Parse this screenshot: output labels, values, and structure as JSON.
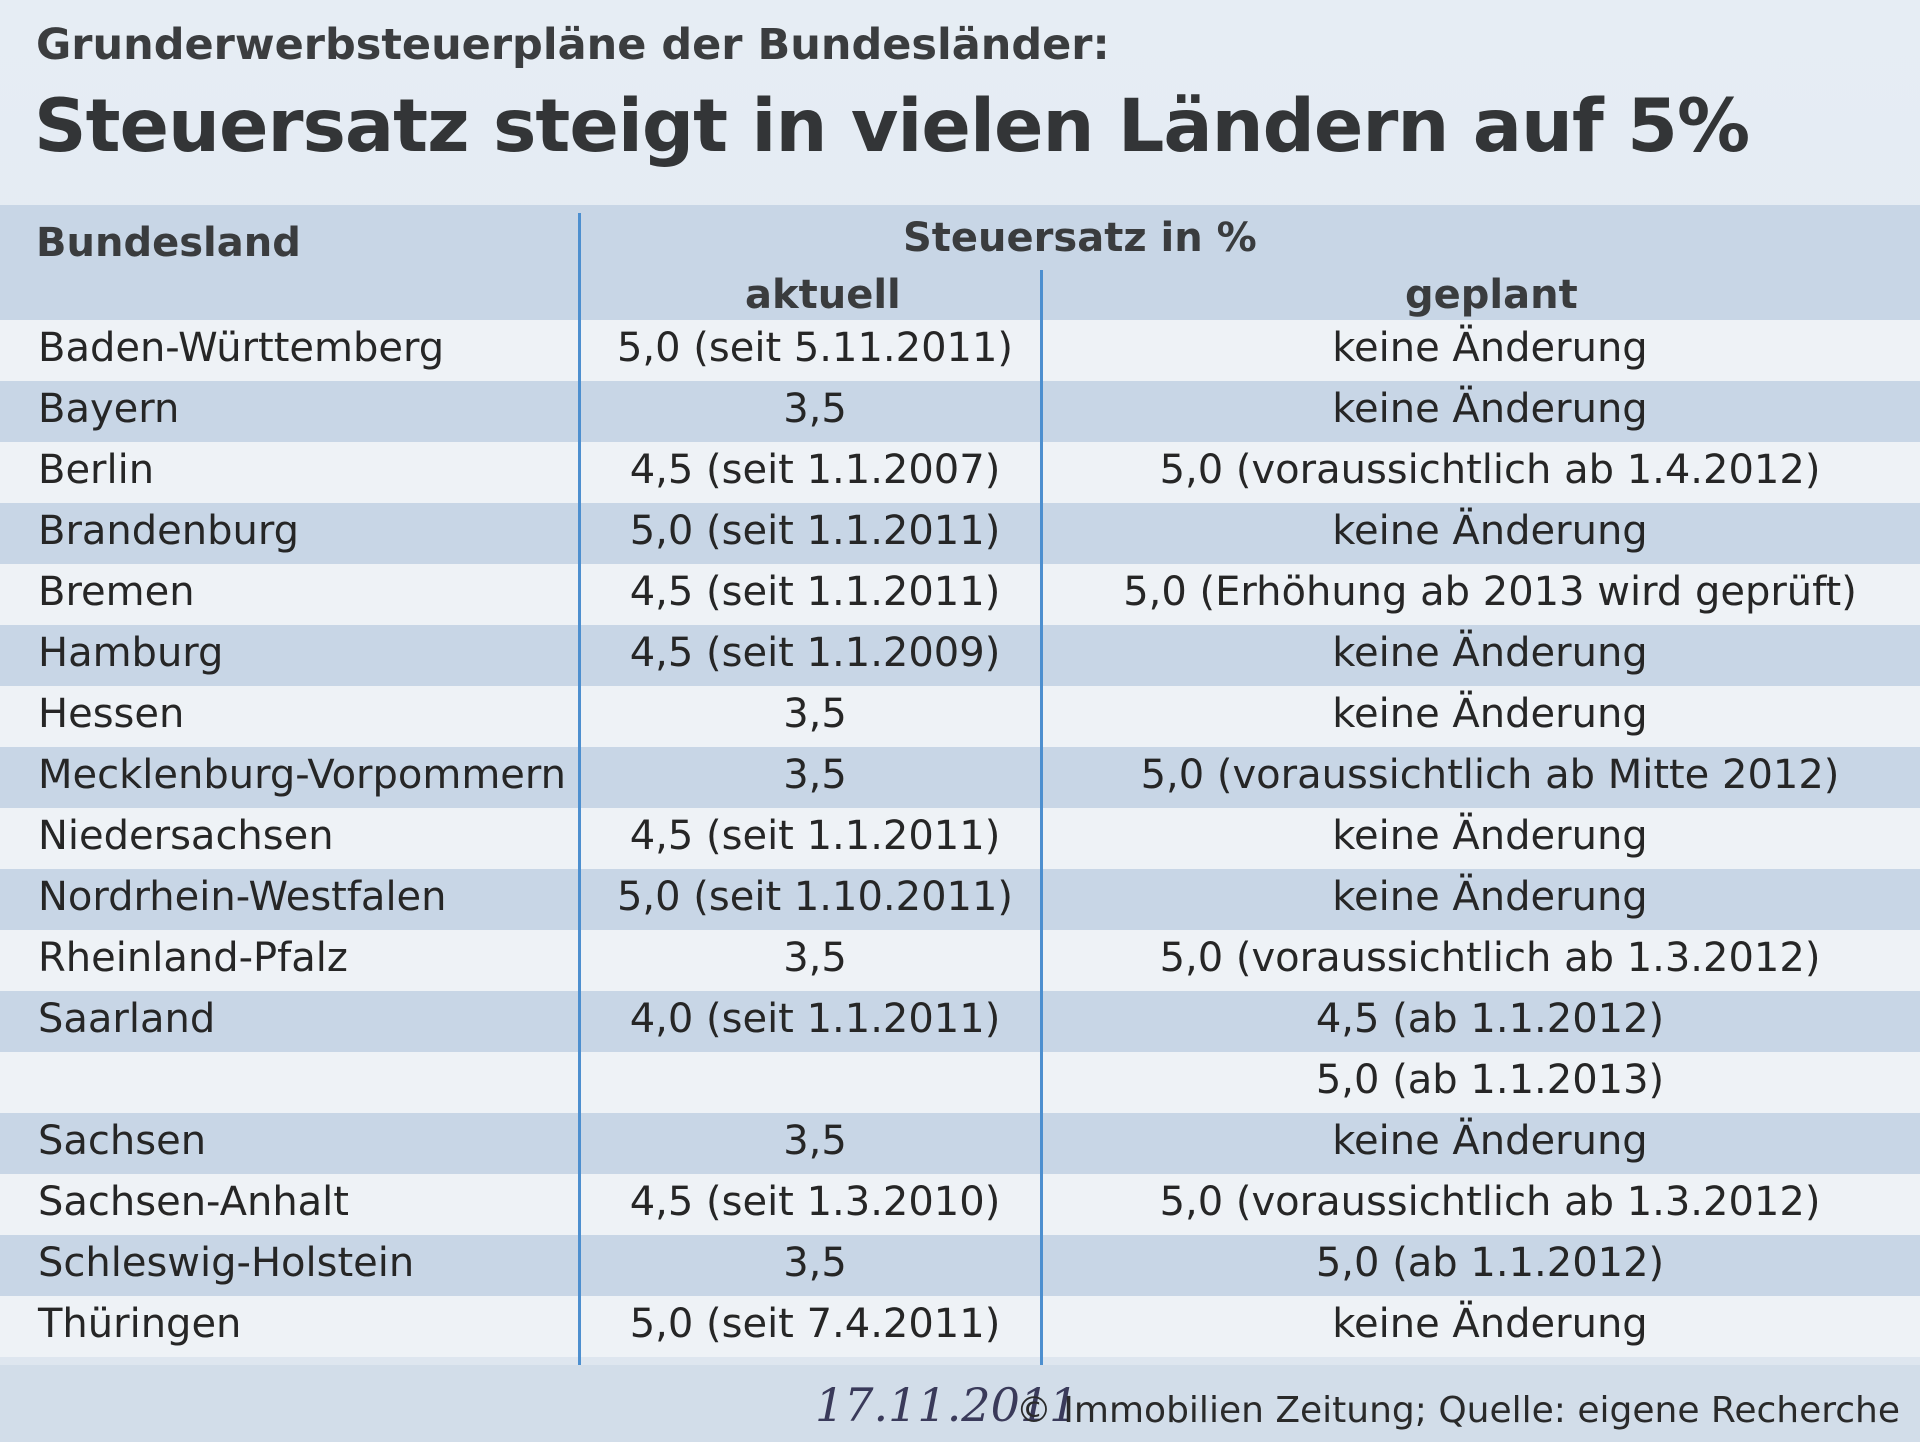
{
  "header": {
    "kicker": "Grunderwerbsteuerpläne der Bundesländer:",
    "headline": "Steuersatz steigt in vielen Ländern auf 5%"
  },
  "table": {
    "col_land": "Bundesland",
    "col_group": "Steuersatz in %",
    "col_aktuell": "aktuell",
    "col_geplant": "geplant",
    "rows": [
      {
        "land": "Baden-Württemberg",
        "aktuell": "5,0 (seit 5.11.2011)",
        "geplant": "keine Änderung"
      },
      {
        "land": "Bayern",
        "aktuell": "3,5",
        "geplant": "keine Änderung"
      },
      {
        "land": "Berlin",
        "aktuell": "4,5 (seit 1.1.2007)",
        "geplant": "5,0 (voraussichtlich ab 1.4.2012)"
      },
      {
        "land": "Brandenburg",
        "aktuell": "5,0 (seit 1.1.2011)",
        "geplant": "keine Änderung"
      },
      {
        "land": "Bremen",
        "aktuell": "4,5 (seit 1.1.2011)",
        "geplant": "5,0 (Erhöhung ab 2013 wird geprüft)"
      },
      {
        "land": "Hamburg",
        "aktuell": "4,5 (seit 1.1.2009)",
        "geplant": "keine Änderung"
      },
      {
        "land": "Hessen",
        "aktuell": "3,5",
        "geplant": "keine Änderung"
      },
      {
        "land": "Mecklenburg-Vorpommern",
        "aktuell": "3,5",
        "geplant": "5,0 (voraussichtlich ab Mitte 2012)"
      },
      {
        "land": "Niedersachsen",
        "aktuell": "4,5 (seit 1.1.2011)",
        "geplant": "keine Änderung"
      },
      {
        "land": "Nordrhein-Westfalen",
        "aktuell": "5,0 (seit 1.10.2011)",
        "geplant": "keine Änderung"
      },
      {
        "land": "Rheinland-Pfalz",
        "aktuell": "3,5",
        "geplant": "5,0 (voraussichtlich ab 1.3.2012)"
      },
      {
        "land": "Saarland",
        "aktuell": "4,0 (seit 1.1.2011)",
        "geplant": "4,5 (ab 1.1.2012)"
      },
      {
        "land": "",
        "aktuell": "",
        "geplant": "5,0 (ab 1.1.2013)"
      },
      {
        "land": "Sachsen",
        "aktuell": "3,5",
        "geplant": "keine Änderung"
      },
      {
        "land": "Sachsen-Anhalt",
        "aktuell": "4,5 (seit 1.3.2010)",
        "geplant": "5,0 (voraussichtlich ab 1.3.2012)"
      },
      {
        "land": "Schleswig-Holstein",
        "aktuell": "3,5",
        "geplant": "5,0 (ab 1.1.2012)"
      },
      {
        "land": "Thüringen",
        "aktuell": "5,0 (seit 7.4.2011)",
        "geplant": "keine Änderung"
      }
    ]
  },
  "footer": {
    "handwritten_date": "17.11.2011",
    "credit": "© Immobilien Zeitung; Quelle: eigene Recherche"
  },
  "colors": {
    "stripe_blue": "#c8d6e6",
    "stripe_white": "#eef2f6",
    "divider": "#4d8fcf"
  }
}
